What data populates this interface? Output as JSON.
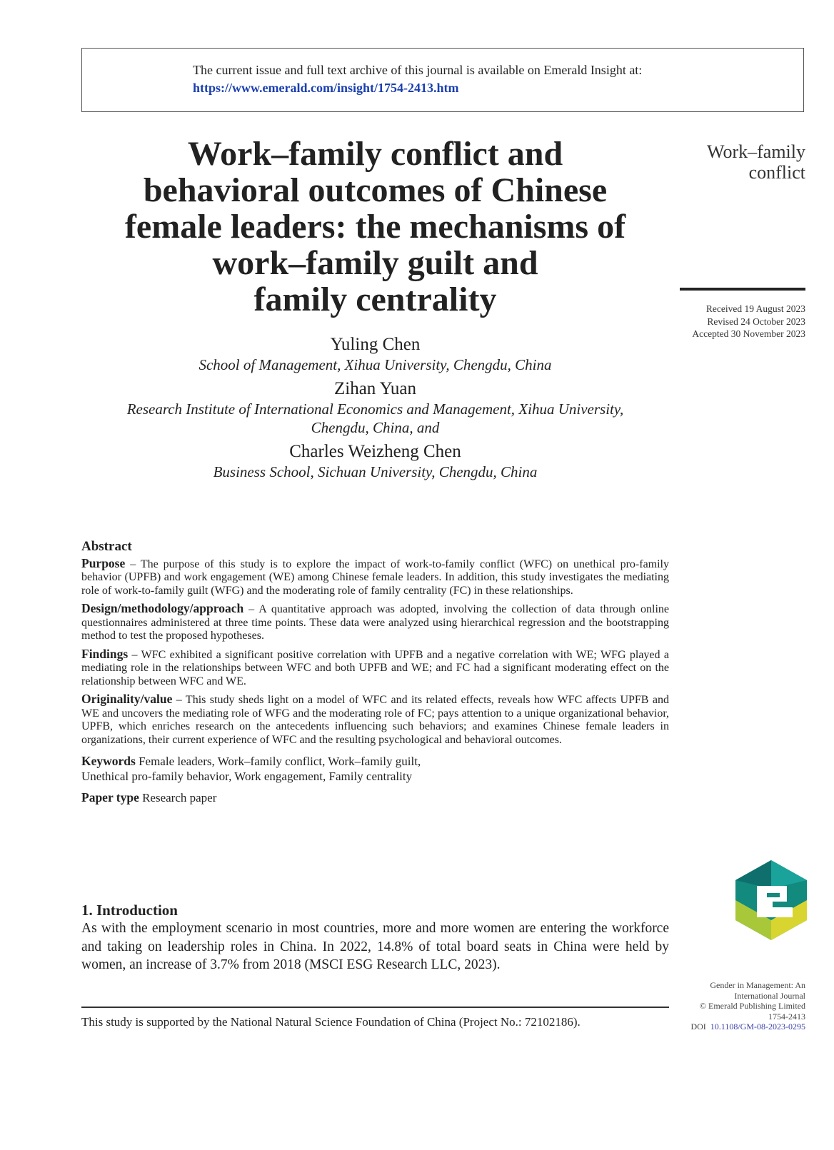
{
  "header_box": {
    "line1": "The current issue and full text archive of this journal is available on Emerald Insight at:",
    "url": "https://www.emerald.com/insight/1754-2413.htm"
  },
  "title_lines": [
    "Work–family conflict and",
    "behavioral outcomes of Chinese",
    "female leaders: the mechanisms of",
    "work–family guilt and",
    "family centrality"
  ],
  "running_head": [
    "Work–family",
    "conflict"
  ],
  "dates": [
    "Received 19 August 2023",
    "Revised 24 October 2023",
    "Accepted 30 November 2023"
  ],
  "authors": [
    {
      "name": "Yuling Chen",
      "affiliation": [
        "School of Management, Xihua University, Chengdu, China"
      ]
    },
    {
      "name": "Zihan Yuan",
      "affiliation": [
        "Research Institute of International Economics and Management, Xihua University,",
        "Chengdu, China, and"
      ]
    },
    {
      "name": "Charles Weizheng Chen",
      "affiliation": [
        "Business School, Sichuan University, Chengdu, China"
      ]
    }
  ],
  "abstract": {
    "heading": "Abstract",
    "sections": [
      {
        "label": "Purpose",
        "text": " – The purpose of this study is to explore the impact of work-to-family conflict (WFC) on unethical pro-family behavior (UPFB) and work engagement (WE) among Chinese female leaders. In addition, this study investigates the mediating role of work-to-family guilt (WFG) and the moderating role of family centrality (FC) in these relationships."
      },
      {
        "label": "Design/methodology/approach",
        "text": " – A quantitative approach was adopted, involving the collection of data through online questionnaires administered at three time points. These data were analyzed using hierarchical regression and the bootstrapping method to test the proposed hypotheses."
      },
      {
        "label": "Findings",
        "text": " – WFC exhibited a significant positive correlation with UPFB and a negative correlation with WE; WFG played a mediating role in the relationships between WFC and both UPFB and WE; and FC had a significant moderating effect on the relationship between WFC and WE."
      },
      {
        "label": "Originality/value",
        "text": " – This study sheds light on a model of WFC and its related effects, reveals how WFC affects UPFB and WE and uncovers the mediating role of WFG and the moderating role of FC; pays attention to a unique organizational behavior, UPFB, which enriches research on the antecedents influencing such behaviors; and examines Chinese female leaders in organizations, their current experience of WFC and the resulting psychological and behavioral outcomes."
      }
    ],
    "keywords_label": "Keywords",
    "keywords_line1": " Female leaders, Work–family conflict, Work–family guilt,",
    "keywords_line2": "Unethical pro-family behavior, Work engagement, Family centrality",
    "paper_type_label": "Paper type",
    "paper_type": " Research paper"
  },
  "intro": {
    "heading": "1. Introduction",
    "text": "As with the employment scenario in most countries, more and more women are entering the workforce and taking on leadership roles in China. In 2022, 14.8% of total board seats in China were held by women, an increase of 3.7% from 2018 (MSCI ESG Research LLC, 2023)."
  },
  "footnote": "This study is supported by the National Natural Science Foundation of China (Project No.: 72102186).",
  "journal_info": {
    "lines": [
      "Gender in Management: An",
      "International Journal",
      "© Emerald Publishing Limited",
      "1754-2413"
    ],
    "doi_label": "DOI",
    "doi": "10.1108/GM-08-2023-0295"
  },
  "colors": {
    "link": "#1a3fb0",
    "doi": "#3a3fa8",
    "logo_teal": "#0f8a80",
    "logo_yellow": "#c9d22a"
  }
}
